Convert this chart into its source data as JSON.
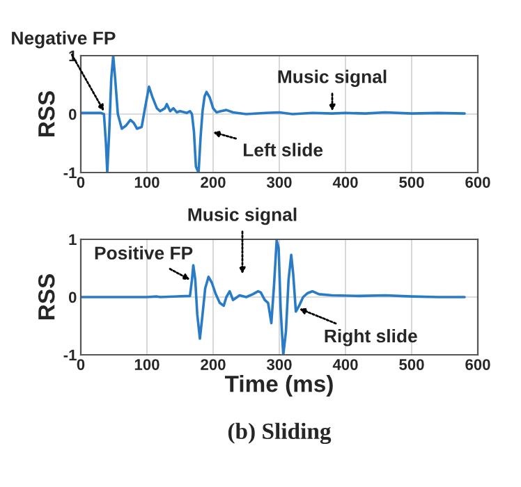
{
  "chart_data": [
    {
      "type": "line",
      "ylabel": "RSS",
      "xlim": [
        0,
        600
      ],
      "xticks": [
        0,
        100,
        200,
        300,
        400,
        500,
        600
      ],
      "ylim": [
        -1,
        1
      ],
      "yticks": [
        -1,
        0,
        1
      ],
      "grid": true,
      "series": [
        {
          "color": "#2a7bc5",
          "x": [
            0,
            30,
            35,
            38,
            40,
            43,
            46,
            49,
            52,
            56,
            62,
            68,
            75,
            80,
            85,
            92,
            97,
            103,
            108,
            115,
            120,
            127,
            130,
            135,
            140,
            145,
            150,
            160,
            165,
            168,
            171,
            174,
            178,
            181,
            184,
            187,
            190,
            195,
            200,
            205,
            212,
            220,
            230,
            250,
            280,
            300,
            320,
            350,
            380,
            400,
            430,
            460,
            500,
            540,
            580
          ],
          "values": [
            0.02,
            0.02,
            0.0,
            -0.5,
            -1.0,
            -0.3,
            0.6,
            1.0,
            0.6,
            0.0,
            -0.25,
            -0.2,
            -0.1,
            -0.15,
            -0.25,
            -0.22,
            0.1,
            0.47,
            0.3,
            0.1,
            0.05,
            0.1,
            0.17,
            0.05,
            0.1,
            0.03,
            0.05,
            0.02,
            0.05,
            0.0,
            -0.3,
            -0.9,
            -1.0,
            -0.4,
            0.05,
            0.3,
            0.38,
            0.28,
            0.1,
            0.03,
            0.05,
            0.07,
            0.03,
            0.0,
            0.02,
            0.03,
            0.0,
            0.02,
            0.01,
            0.02,
            0.01,
            0.03,
            0.01,
            0.02,
            0.01
          ]
        }
      ],
      "annotations": [
        {
          "text": "Negative FP",
          "x": 35,
          "y": 0.05
        },
        {
          "text": "Music signal",
          "x": 380,
          "y": 0.05
        },
        "Left slide"
      ]
    },
    {
      "type": "line",
      "xlabel": "Time (ms)",
      "ylabel": "RSS",
      "xlim": [
        0,
        600
      ],
      "xticks": [
        0,
        100,
        200,
        300,
        400,
        500,
        600
      ],
      "ylim": [
        -1,
        1
      ],
      "yticks": [
        -1,
        0,
        1
      ],
      "grid": true,
      "series": [
        {
          "color": "#2a7bc5",
          "x": [
            0,
            100,
            115,
            120,
            165,
            168,
            170,
            173,
            176,
            180,
            184,
            188,
            193,
            198,
            204,
            210,
            216,
            220,
            225,
            230,
            240,
            250,
            260,
            268,
            272,
            278,
            283,
            288,
            292,
            296,
            299,
            302,
            306,
            310,
            314,
            318,
            321,
            325,
            330,
            336,
            343,
            350,
            360,
            380,
            420,
            460,
            500,
            540,
            580
          ],
          "values": [
            0.0,
            0.0,
            0.01,
            0.0,
            0.02,
            0.3,
            0.55,
            0.3,
            -0.3,
            -0.72,
            -0.3,
            0.15,
            0.35,
            0.25,
            0.05,
            -0.1,
            -0.15,
            0.0,
            0.1,
            -0.05,
            0.03,
            0.0,
            0.05,
            0.1,
            0.08,
            -0.05,
            -0.1,
            -0.45,
            0.2,
            0.98,
            0.85,
            -0.2,
            -1.0,
            -0.6,
            0.3,
            0.73,
            0.4,
            -0.25,
            -0.15,
            0.0,
            0.07,
            0.1,
            0.05,
            0.03,
            0.02,
            0.03,
            0.01,
            0.0,
            0.0
          ]
        }
      ],
      "annotations": [
        {
          "text": "Positive FP",
          "x": 165,
          "y": 0.3
        },
        "Music signal",
        {
          "text": "Right slide",
          "x": 330,
          "y": -0.2
        },
        "(b) Sliding"
      ]
    }
  ]
}
